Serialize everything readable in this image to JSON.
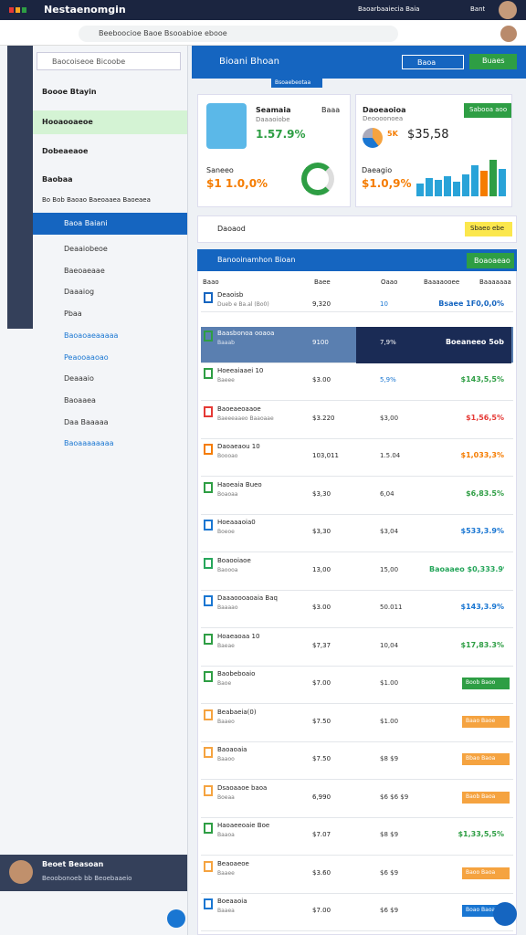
{
  "topbar": {
    "title": "Nestaenomgin",
    "account": "Baoarbaaiecia Baia",
    "user": "Bant"
  },
  "address": "Beeboocioe Baoe Bsooabioe ebooe",
  "sidebar": {
    "search": "Baocoiseoe Bicoobe",
    "items": [
      "Boooe Btayin",
      "Hooaooaeoe",
      "Dobeaeaoe",
      "Baobaa"
    ],
    "note": "Bo Bob Baoao Baeoaaea Baoeaea",
    "active": "Baoa Baiani",
    "subitems": [
      "Deaaiobeoe",
      "Baeoaeaae",
      "Daaaiog",
      "Pbaa",
      "Baoaoaeaaaaa",
      "Peaooaaoao",
      "Deaaaio",
      "Baoaaea",
      "Daa Baaaaa",
      "Baoaaaaaaaa"
    ],
    "profile": {
      "name": "Beoet Beasoan",
      "sub": "Beoobonoeb bb Beoebaaeio"
    }
  },
  "header": {
    "title": "Bioani Bhoan",
    "tag": "Bsoaebeotaa",
    "search": "Baoa",
    "button": "Buaes"
  },
  "cards": [
    {
      "title": "Seamaia",
      "meta": "Baaa",
      "sub": "Daaaoiobe",
      "value": "1.57.9%",
      "label": "Saneeo",
      "value2": "$1 1.0,0%"
    },
    {
      "title": "Daoeaoioa",
      "sub": "Deoooonoea",
      "button": "Sabooa aoo",
      "pct": "5K",
      "value": "$35,58",
      "label": "Daeagio",
      "value2": "$1.0,9%"
    }
  ],
  "section": {
    "title": "Daoaod",
    "button": "Sbaeo ebe"
  },
  "table": {
    "title": "Banooinamhon Bioan",
    "button": "Boaoaeao",
    "columns": [
      "Baao",
      "Baee",
      "Oaao",
      "Baaaaooee",
      "Baaaaaaa"
    ],
    "rows": [
      {
        "name": "Deaoisb",
        "sub": "Dueb e Ba.al (Bo0)",
        "a": "9,320",
        "b": "10",
        "c": "Bsaee 1F0,0,0%",
        "color": "#1565c0"
      },
      {
        "name": "Baasbonoa ooaoa",
        "sub": "Baaab",
        "a": "9100",
        "b": "7,9%",
        "c": "Boeaneeo 5ob",
        "color": "#ffffff"
      },
      {
        "name": "Hoeeaiaaei 10",
        "sub": "Baeee",
        "a": "$3.00",
        "b": "5,9%",
        "c": "$143,5,5%",
        "color": "#2e9e44"
      },
      {
        "name": "Baoeaeoaaoe",
        "sub": "Baeeeaaeo Baaoaae",
        "a": "$3.220",
        "b": "$3,00",
        "c": "$1,56,5%",
        "color": "#e53935"
      },
      {
        "name": "Daoaeaou 10",
        "sub": "Boooao",
        "a": "103,011",
        "b": "1.5.04",
        "c": "$1,033,3%",
        "color": "#f57c00"
      },
      {
        "name": "Haoeaia Bueo",
        "sub": "Boaoaa",
        "a": "$3,30",
        "b": "6,04",
        "c": "$6,83.5%",
        "color": "#2e9e44"
      },
      {
        "name": "Hoeaaaoia0",
        "sub": "Boeoe",
        "a": "$3,30",
        "b": "$3,04",
        "c": "$533,3.9%",
        "color": "#1976d2"
      },
      {
        "name": "Boaooiaoe",
        "sub": "Baoooa",
        "a": "13,00",
        "b": "15,00",
        "c": "Baoaaeo $0,333.9%",
        "color": "#26a65b"
      },
      {
        "name": "Daaaoooaoaia Baq",
        "sub": "Baaaao",
        "a": "$3.00",
        "b": "50.011",
        "c": "$143,3.9%",
        "color": "#1976d2"
      },
      {
        "name": "Hoaeaoaa 10",
        "sub": "Baeae",
        "a": "$7,37",
        "b": "10,04",
        "c": "$17,83.3%",
        "color": "#2e9e44"
      },
      {
        "name": "Baobeboaio",
        "sub": "Baoe",
        "a": "$7.00",
        "b": "$1.00",
        "badge": "Boob Baoo",
        "color": "#2e9e44"
      },
      {
        "name": "Beabaeia(0)",
        "sub": "Baaeo",
        "a": "$7.50",
        "b": "$1.00",
        "badge": "Baao Baoe",
        "color": "#f5a340"
      },
      {
        "name": "Baoaoaia",
        "sub": "Baaoo",
        "a": "$7.50",
        "b": "$8 $9",
        "badge": "Bbao Baoa",
        "color": "#f5a340"
      },
      {
        "name": "Dsaoaaoe baoa",
        "sub": "Boeaa",
        "a": "6,990",
        "b": "$6 $6 $9",
        "badge": "Baob Baoa",
        "color": "#f5a340"
      },
      {
        "name": "Haoaeeoaie Boe",
        "sub": "Baaoa",
        "a": "$7.07",
        "b": "$8 $9",
        "c": "$1,33,5,5%",
        "color": "#2e9e44"
      },
      {
        "name": "Beaoaeoe",
        "sub": "Baaee",
        "a": "$3.60",
        "b": "$6 $9",
        "badge": "Baoo Baoa",
        "color": "#f5a340"
      },
      {
        "name": "Boeaaoia",
        "sub": "Baaea",
        "a": "$7.00",
        "b": "$6 $9",
        "badge": "Boao Baoa",
        "color": "#1976d2"
      }
    ]
  }
}
